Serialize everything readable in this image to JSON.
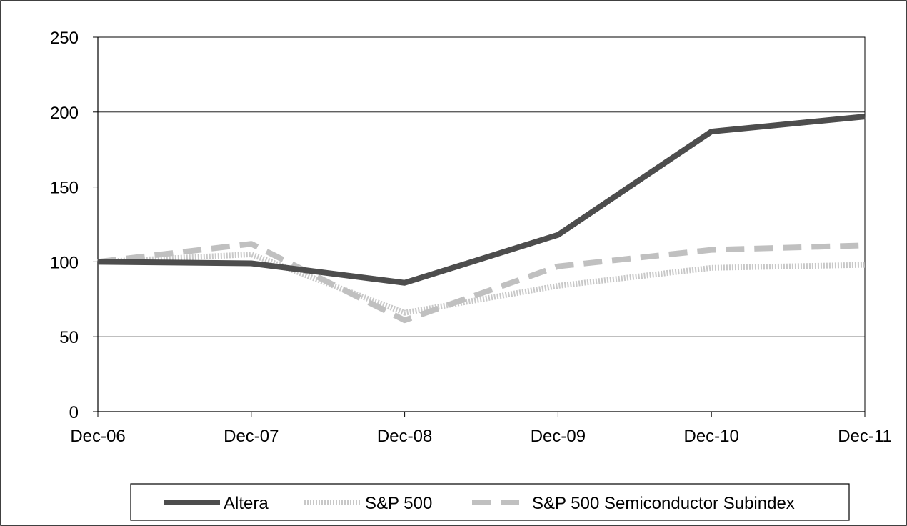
{
  "chart_data": {
    "type": "line",
    "categories": [
      "Dec-06",
      "Dec-07",
      "Dec-08",
      "Dec-09",
      "Dec-10",
      "Dec-11"
    ],
    "ylim": [
      0,
      250
    ],
    "yticks": [
      0,
      50,
      100,
      150,
      200,
      250
    ],
    "grid": true,
    "legend_position": "bottom",
    "series": [
      {
        "name": "Altera",
        "values": [
          100,
          99,
          86,
          118,
          187,
          197
        ],
        "color": "#4d4d4d",
        "style": "solid"
      },
      {
        "name": "S&P 500",
        "values": [
          100,
          105,
          66,
          84,
          96,
          98
        ],
        "color": "#c8c8c8",
        "style": "dotted"
      },
      {
        "name": "S&P 500 Semiconductor Subindex",
        "values": [
          100,
          112,
          61,
          97,
          108,
          111
        ],
        "color": "#c0c0c0",
        "style": "dashed"
      }
    ]
  }
}
